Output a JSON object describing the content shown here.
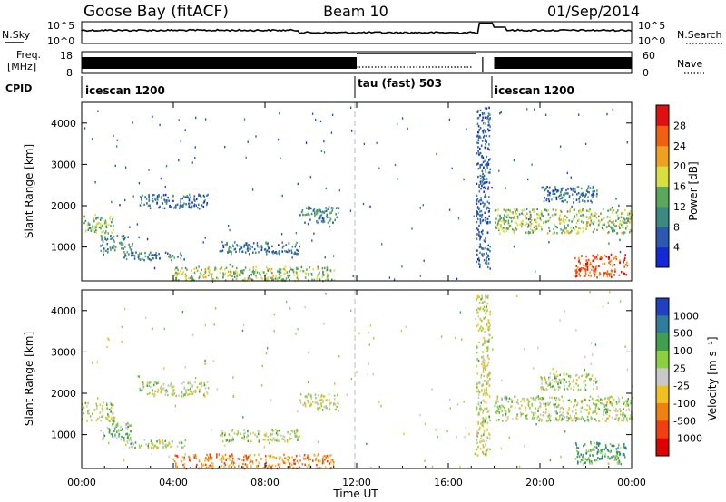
{
  "header": {
    "station": "Goose Bay (fitACF)",
    "beam": "Beam 10",
    "date": "01/Sep/2014"
  },
  "noise_panel": {
    "left_label": "N.Sky",
    "left_ticks": [
      "10^5",
      "10^0"
    ],
    "right_label": "N.Search",
    "right_ticks": [
      "10^5",
      "10^0"
    ]
  },
  "freq_panel": {
    "left_label_line1": "Freq.",
    "left_label_line2": "[MHz]",
    "left_ticks": [
      "18",
      "8"
    ],
    "right_label": "Nave",
    "right_ticks": [
      "60",
      "0"
    ]
  },
  "cpid": {
    "label": "CPID",
    "programs": [
      {
        "name": "icescan 1200",
        "start_hour": 0,
        "end_hour": 12
      },
      {
        "name": "tau (fast) 503",
        "start_hour": 12,
        "end_hour": 18
      },
      {
        "name": "icescan 1200",
        "start_hour": 18,
        "end_hour": 24
      }
    ]
  },
  "x_axis": {
    "label": "Time UT",
    "ticks": [
      "00:00",
      "04:00",
      "08:00",
      "12:00",
      "16:00",
      "20:00",
      "00:00"
    ],
    "range_hours": [
      0,
      24
    ]
  },
  "power_colorbar": {
    "label": "Power [dB]",
    "ticks": [
      "4",
      "8",
      "12",
      "16",
      "20",
      "24",
      "28"
    ],
    "colors": [
      "#1428d8",
      "#2b58b0",
      "#3a8a80",
      "#5aa85a",
      "#d8e040",
      "#f0a020",
      "#f06010",
      "#e01010"
    ]
  },
  "velocity_colorbar": {
    "label": "Velocity [m s⁻¹]",
    "ticks": [
      "1000",
      "500",
      "100",
      "25",
      "-25",
      "-100",
      "-500",
      "-1000"
    ],
    "colors": [
      "#2040c0",
      "#2f7d9a",
      "#3fa050",
      "#8cd040",
      "#c8c8c8",
      "#f0c020",
      "#f08010",
      "#f04010",
      "#e00000"
    ]
  },
  "chart_data": [
    {
      "type": "heatmap",
      "title": "Power",
      "ylabel": "Slant Range [km]",
      "xlabel": "",
      "xlim": [
        0,
        24
      ],
      "ylim": [
        180,
        4500
      ],
      "yticks": [
        "1000",
        "2000",
        "3000",
        "4000"
      ],
      "bands": [
        {
          "start": 0.0,
          "end": 1.4,
          "range_lo": 1350,
          "range_hi": 1800,
          "level": 0.45
        },
        {
          "start": 0.8,
          "end": 2.2,
          "range_lo": 900,
          "range_hi": 1300,
          "level": 0.35
        },
        {
          "start": 1.8,
          "end": 4.5,
          "range_lo": 700,
          "range_hi": 900,
          "level": 0.3
        },
        {
          "start": 2.5,
          "end": 5.5,
          "range_lo": 1950,
          "range_hi": 2300,
          "level": 0.25
        },
        {
          "start": 4.0,
          "end": 11.0,
          "range_lo": 200,
          "range_hi": 550,
          "level": 0.5
        },
        {
          "start": 6.0,
          "end": 9.5,
          "range_lo": 850,
          "range_hi": 1150,
          "level": 0.25
        },
        {
          "start": 9.5,
          "end": 11.2,
          "range_lo": 1600,
          "range_hi": 2000,
          "level": 0.3
        },
        {
          "start": 17.2,
          "end": 17.8,
          "range_lo": 500,
          "range_hi": 4400,
          "level": 0.2
        },
        {
          "start": 18.0,
          "end": 24.0,
          "range_lo": 1350,
          "range_hi": 1950,
          "level": 0.5
        },
        {
          "start": 20.0,
          "end": 22.5,
          "range_lo": 2100,
          "range_hi": 2500,
          "level": 0.25
        },
        {
          "start": 21.5,
          "end": 23.8,
          "range_lo": 300,
          "range_hi": 850,
          "level": 0.85
        }
      ]
    },
    {
      "type": "heatmap",
      "title": "Velocity",
      "ylabel": "Slant Range [km]",
      "xlabel": "Time UT",
      "xlim": [
        0,
        24
      ],
      "ylim": [
        180,
        4500
      ],
      "yticks": [
        "1000",
        "2000",
        "3000",
        "4000"
      ],
      "bands": [
        {
          "start": 0.0,
          "end": 1.4,
          "range_lo": 1350,
          "range_hi": 1800,
          "level": 0.45
        },
        {
          "start": 0.8,
          "end": 2.2,
          "range_lo": 900,
          "range_hi": 1300,
          "level": 0.38
        },
        {
          "start": 1.8,
          "end": 4.5,
          "range_lo": 700,
          "range_hi": 900,
          "level": 0.45
        },
        {
          "start": 2.5,
          "end": 5.5,
          "range_lo": 1950,
          "range_hi": 2300,
          "level": 0.45
        },
        {
          "start": 4.0,
          "end": 11.0,
          "range_lo": 200,
          "range_hi": 550,
          "level": 0.7
        },
        {
          "start": 6.0,
          "end": 9.5,
          "range_lo": 850,
          "range_hi": 1150,
          "level": 0.45
        },
        {
          "start": 9.5,
          "end": 11.2,
          "range_lo": 1600,
          "range_hi": 2000,
          "level": 0.5
        },
        {
          "start": 17.2,
          "end": 17.8,
          "range_lo": 500,
          "range_hi": 4400,
          "level": 0.5
        },
        {
          "start": 18.0,
          "end": 24.0,
          "range_lo": 1350,
          "range_hi": 1950,
          "level": 0.45
        },
        {
          "start": 20.0,
          "end": 22.5,
          "range_lo": 2100,
          "range_hi": 2500,
          "level": 0.45
        },
        {
          "start": 21.5,
          "end": 23.8,
          "range_lo": 300,
          "range_hi": 850,
          "level": 0.28
        }
      ]
    }
  ]
}
